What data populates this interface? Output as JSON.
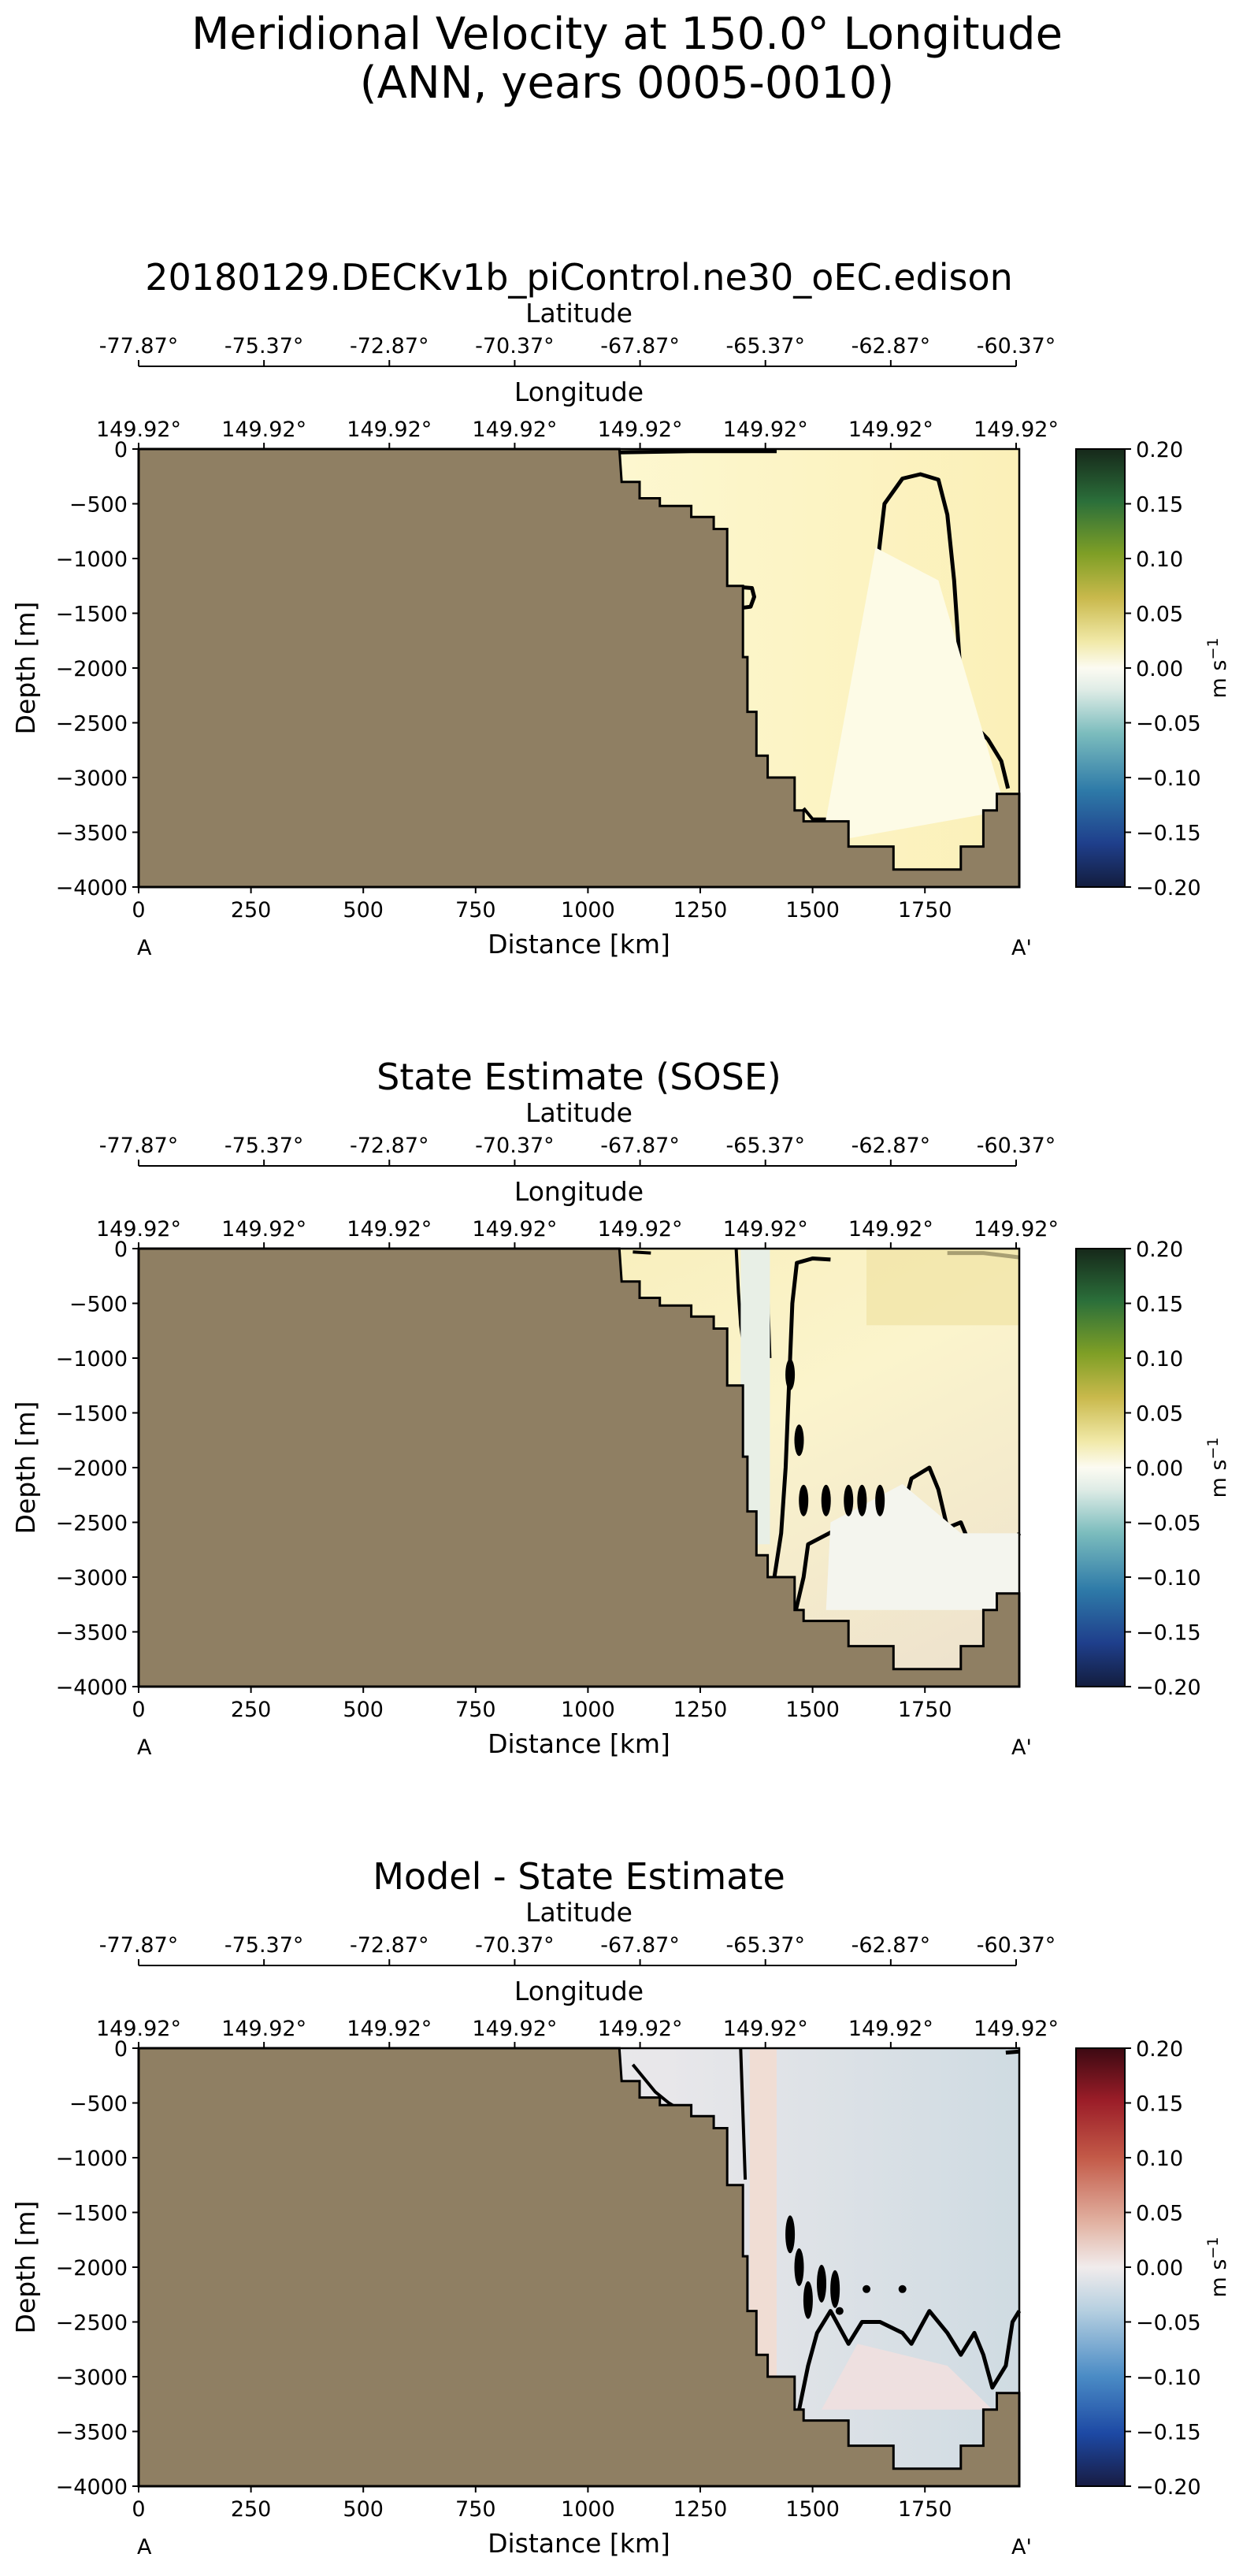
{
  "figure": {
    "title_line1": "Meridional Velocity at 150.0° Longitude",
    "title_line2": "(ANN, years 0005-0010)"
  },
  "colors": {
    "land": "#8f7f63",
    "contour": "#000000"
  },
  "chart_data": [
    {
      "type": "heatmap",
      "title": "20180129.DECKv1b_piControl.ne30_oEC.edison",
      "xlabel": "Distance [km]",
      "ylabel": "Depth [m]",
      "xlim": [
        0,
        1960
      ],
      "ylim": [
        -4000,
        0
      ],
      "xticks": [
        "0",
        "250",
        "500",
        "750",
        "1000",
        "1250",
        "1500",
        "1750"
      ],
      "yticks": [
        "0",
        "−500",
        "−1000",
        "−1500",
        "−2000",
        "−2500",
        "−3000",
        "−3500",
        "−4000"
      ],
      "start_label": "A",
      "end_label": "A'",
      "latitude_label": "Latitude",
      "latitude_ticks": [
        "-77.87°",
        "-75.37°",
        "-72.87°",
        "-70.37°",
        "-67.87°",
        "-65.37°",
        "-62.87°",
        "-60.37°"
      ],
      "longitude_label": "Longitude",
      "longitude_ticks": [
        "149.92°",
        "149.92°",
        "149.92°",
        "149.92°",
        "149.92°",
        "149.92°",
        "149.92°",
        "149.92°"
      ],
      "colorbar": {
        "label": "m s",
        "label_exp": "−1",
        "colormap": "delta",
        "range": [
          -0.2,
          0.2
        ],
        "ticks": [
          "0.20",
          "0.15",
          "0.10",
          "0.05",
          "0.00",
          "−0.05",
          "−0.10",
          "−0.15",
          "−0.20"
        ]
      }
    },
    {
      "type": "heatmap",
      "title": "State Estimate (SOSE)",
      "xlabel": "Distance [km]",
      "ylabel": "Depth [m]",
      "xlim": [
        0,
        1960
      ],
      "ylim": [
        -4000,
        0
      ],
      "xticks": [
        "0",
        "250",
        "500",
        "750",
        "1000",
        "1250",
        "1500",
        "1750"
      ],
      "yticks": [
        "0",
        "−500",
        "−1000",
        "−1500",
        "−2000",
        "−2500",
        "−3000",
        "−3500",
        "−4000"
      ],
      "start_label": "A",
      "end_label": "A'",
      "latitude_label": "Latitude",
      "latitude_ticks": [
        "-77.87°",
        "-75.37°",
        "-72.87°",
        "-70.37°",
        "-67.87°",
        "-65.37°",
        "-62.87°",
        "-60.37°"
      ],
      "longitude_label": "Longitude",
      "longitude_ticks": [
        "149.92°",
        "149.92°",
        "149.92°",
        "149.92°",
        "149.92°",
        "149.92°",
        "149.92°",
        "149.92°"
      ],
      "colorbar": {
        "label": "m s",
        "label_exp": "−1",
        "colormap": "delta",
        "range": [
          -0.2,
          0.2
        ],
        "ticks": [
          "0.20",
          "0.15",
          "0.10",
          "0.05",
          "0.00",
          "−0.05",
          "−0.10",
          "−0.15",
          "−0.20"
        ]
      }
    },
    {
      "type": "heatmap",
      "title": "Model - State Estimate",
      "xlabel": "Distance [km]",
      "ylabel": "Depth [m]",
      "xlim": [
        0,
        1960
      ],
      "ylim": [
        -4000,
        0
      ],
      "xticks": [
        "0",
        "250",
        "500",
        "750",
        "1000",
        "1250",
        "1500",
        "1750"
      ],
      "yticks": [
        "0",
        "−500",
        "−1000",
        "−1500",
        "−2000",
        "−2500",
        "−3000",
        "−3500",
        "−4000"
      ],
      "start_label": "A",
      "end_label": "A'",
      "latitude_label": "Latitude",
      "latitude_ticks": [
        "-77.87°",
        "-75.37°",
        "-72.87°",
        "-70.37°",
        "-67.87°",
        "-65.37°",
        "-62.87°",
        "-60.37°"
      ],
      "longitude_label": "Longitude",
      "longitude_ticks": [
        "149.92°",
        "149.92°",
        "149.92°",
        "149.92°",
        "149.92°",
        "149.92°",
        "149.92°",
        "149.92°"
      ],
      "colorbar": {
        "label": "m s",
        "label_exp": "−1",
        "colormap": "balance",
        "range": [
          -0.2,
          0.2
        ],
        "ticks": [
          "0.20",
          "0.15",
          "0.10",
          "0.05",
          "0.00",
          "−0.05",
          "−0.10",
          "−0.15",
          "−0.20"
        ]
      }
    }
  ]
}
